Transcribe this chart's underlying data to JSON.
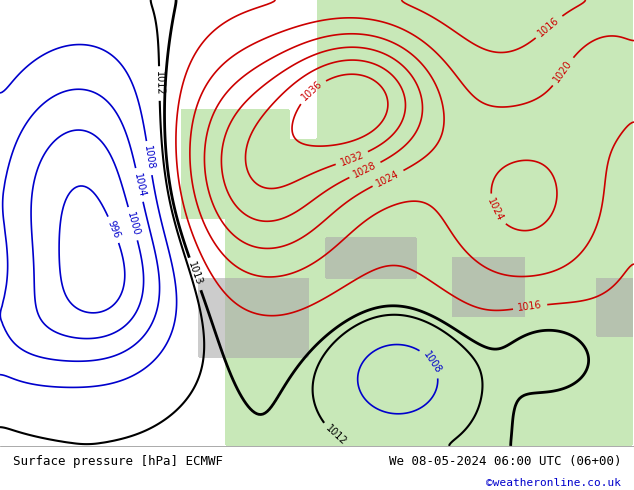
{
  "title_left": "Surface pressure [hPa] ECMWF",
  "title_right": "We 08-05-2024 06:00 UTC (06+00)",
  "credit": "©weatheronline.co.uk",
  "credit_color": "#0000cc",
  "bg_ocean": "#d8e8f0",
  "bg_land_low": "#c8e8c0",
  "bg_land_high": "#e8f8e0",
  "bg_mountain": "#b0b0b0",
  "footer_bg": "#ffffff",
  "footer_text_color": "#000000",
  "isobar_high_color": "#cc0000",
  "isobar_low_color": "#0000cc",
  "isobar_13_color": "#000000",
  "figsize": [
    6.34,
    4.9
  ],
  "dpi": 100
}
